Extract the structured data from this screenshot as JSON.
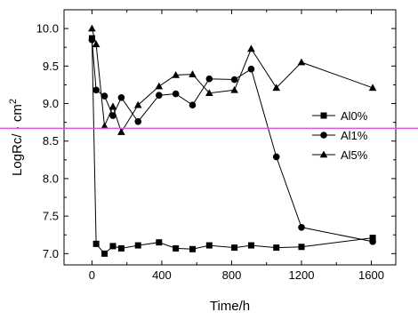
{
  "chart_data": {
    "type": "line",
    "title": "",
    "xlabel": "Time/h",
    "ylabel": "LogRc/   · cm",
    "ylabel_superscript": "2",
    "xlim": [
      -160,
      1740
    ],
    "ylim": [
      6.85,
      10.25
    ],
    "xticks": [
      0,
      400,
      800,
      1200,
      1600
    ],
    "xtick_labels": [
      "0",
      "400",
      "800",
      "1200",
      "1600"
    ],
    "yticks": [
      7.0,
      7.5,
      8.0,
      8.5,
      9.0,
      9.5,
      10.0
    ],
    "ytick_labels": [
      "7.0",
      "7.5",
      "8.0",
      "8.5",
      "9.0",
      "9.5",
      "10.0"
    ],
    "grid": false,
    "legend_position": "right",
    "series": [
      {
        "name": "Al0%",
        "marker": "square",
        "x": [
          0,
          24,
          72,
          120,
          168,
          264,
          384,
          480,
          576,
          672,
          816,
          912,
          1056,
          1200,
          1608
        ],
        "y": [
          9.87,
          7.13,
          7.0,
          7.1,
          7.07,
          7.11,
          7.15,
          7.07,
          7.06,
          7.11,
          7.08,
          7.11,
          7.08,
          7.09,
          7.21
        ]
      },
      {
        "name": "Al1%",
        "marker": "circle",
        "x": [
          0,
          24,
          72,
          120,
          168,
          264,
          384,
          480,
          576,
          672,
          816,
          912,
          1056,
          1200,
          1608
        ],
        "y": [
          9.85,
          9.18,
          9.1,
          8.84,
          9.08,
          8.76,
          9.11,
          9.13,
          8.98,
          9.33,
          9.32,
          9.46,
          8.29,
          7.35,
          7.16
        ]
      },
      {
        "name": "Al5%",
        "marker": "triangle",
        "x": [
          0,
          24,
          72,
          120,
          168,
          264,
          384,
          480,
          576,
          672,
          816,
          912,
          1056,
          1200,
          1608
        ],
        "y": [
          10.0,
          9.79,
          8.7,
          8.96,
          8.62,
          8.98,
          9.23,
          9.38,
          9.39,
          9.14,
          9.18,
          9.73,
          9.21,
          9.55,
          9.21
        ]
      }
    ],
    "overlay_line_color": "#e055e0",
    "overlay_line_y": 8.67
  }
}
